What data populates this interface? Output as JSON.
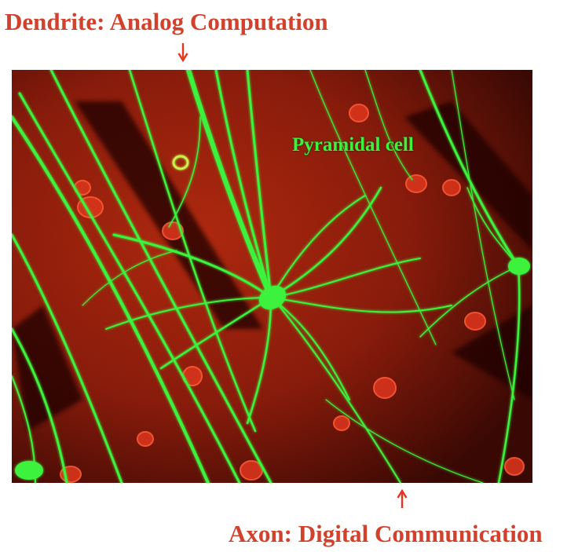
{
  "labels": {
    "top": "Dendrite: Analog Computation",
    "bottom": "Axon: Digital Communication",
    "cell": "Pyramidal cell"
  },
  "colors": {
    "label_red": "#d2412b",
    "arrow_red": "#e8341f",
    "neuron_green": "#3cf23c",
    "background_red": "#8a1c0c"
  },
  "image": {
    "subject": "fluorescence micrograph of a pyramidal neuron"
  }
}
